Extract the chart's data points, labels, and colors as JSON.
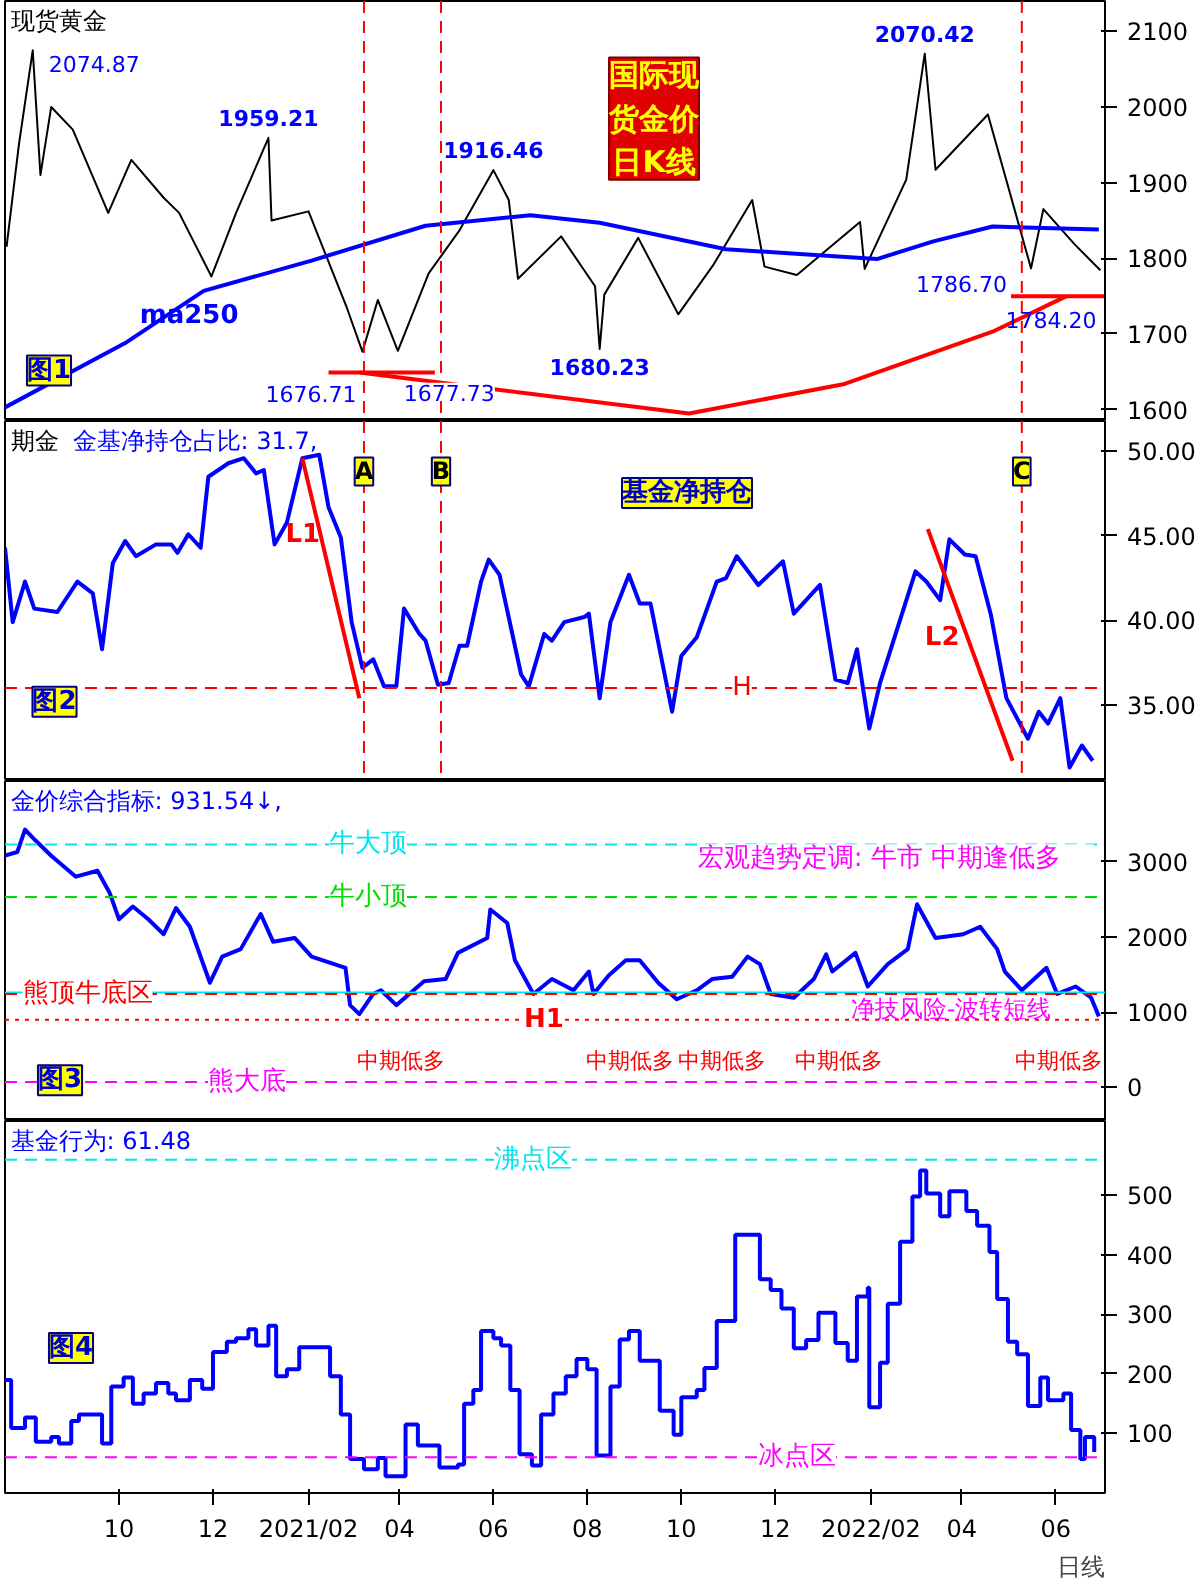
{
  "chart_data": [
    {
      "type": "line",
      "title": "现货黄金",
      "xlim": [
        "2020-07-19",
        "2022-07-03"
      ],
      "ylim": [
        1585,
        2140
      ],
      "yticks": [
        1600,
        1700,
        1800,
        1900,
        2000,
        2100
      ],
      "tick_labels": "y",
      "series": [
        {
          "color": "#000000",
          "x": [
            "2020-07-20",
            "2020-07-28",
            "2020-08-06",
            "2020-08-11",
            "2020-08-18",
            "2020-09-01",
            "2020-09-24",
            "2020-10-09",
            "2020-10-30",
            "2020-11-09",
            "2020-11-30",
            "2020-12-16",
            "2021-01-06",
            "2021-01-08",
            "2021-02-01",
            "2021-02-26",
            "2021-03-08",
            "2021-03-18",
            "2021-03-31",
            "2021-04-20",
            "2021-05-10",
            "2021-06-01",
            "2021-06-11",
            "2021-06-17",
            "2021-07-15",
            "2021-08-06",
            "2021-08-09",
            "2021-08-12",
            "2021-09-03",
            "2021-09-29",
            "2021-10-22",
            "2021-11-16",
            "2021-11-24",
            "2021-12-15",
            "2022-01-25",
            "2022-01-28",
            "2022-02-24",
            "2022-03-08",
            "2022-03-15",
            "2022-04-18",
            "2022-05-16",
            "2022-05-24",
            "2022-06-13",
            "2022-06-30"
          ],
          "values": [
            1815,
            1950,
            2074.87,
            1910,
            2000,
            1970,
            1860,
            1930,
            1880,
            1860,
            1776,
            1860,
            1959.21,
            1850,
            1862,
            1734,
            1676.71,
            1745,
            1677.73,
            1780,
            1837,
            1916.46,
            1877,
            1773,
            1829,
            1763,
            1680.23,
            1752,
            1827,
            1726,
            1792,
            1877,
            1789,
            1778,
            1848,
            1786,
            1904,
            2070.42,
            1917,
            1990,
            1786.7,
            1865,
            1819,
            1784.2
          ]
        },
        {
          "name": "ma250",
          "color": "#0000ff",
          "x": [
            "2020-07-19",
            "2020-10-05",
            "2020-11-25",
            "2021-02-03",
            "2021-04-18",
            "2021-06-25",
            "2021-08-09",
            "2021-10-30",
            "2022-02-05",
            "2022-03-13",
            "2022-04-21",
            "2022-06-29"
          ],
          "values": [
            1603,
            1688,
            1757,
            1797,
            1843,
            1857,
            1847,
            1812,
            1799,
            1822,
            1842,
            1838
          ]
        },
        {
          "color": "#ff0000",
          "x": [
            "2021-03-06",
            "2021-10-06",
            "2022-01-15",
            "2022-04-21",
            "2022-06-08"
          ],
          "values": [
            1649,
            1595,
            1634,
            1703,
            1750
          ]
        },
        {
          "color": "#ff0000",
          "x": [
            "2021-02-14",
            "2021-04-24"
          ],
          "values": [
            1649,
            1649
          ]
        },
        {
          "color": "#ff0000",
          "x": [
            "2022-05-03",
            "2022-07-03"
          ],
          "values": [
            1750,
            1750
          ]
        }
      ],
      "ref_lines": [
        {
          "axis": "x",
          "value": "2021-03-09",
          "color": "#ff0000",
          "line_style": "dashed"
        },
        {
          "axis": "x",
          "value": "2021-04-28",
          "color": "#ff0000",
          "line_style": "dashed"
        },
        {
          "axis": "x",
          "value": "2022-05-10",
          "color": "#ff0000",
          "line_style": "dashed"
        }
      ],
      "annotations": [
        {
          "text": "2074.87",
          "x": "2020-08-06",
          "y": 2074.87
        },
        {
          "text": "1959.21",
          "x": "2021-01-06",
          "y": 1959.21
        },
        {
          "text": "1916.46",
          "x": "2021-06-01",
          "y": 1916.46
        },
        {
          "text": "1676.71",
          "x": "2021-03-08",
          "y": 1676.71
        },
        {
          "text": "1677.73",
          "x": "2021-03-31",
          "y": 1677.73
        },
        {
          "text": "1680.23",
          "x": "2021-08-09",
          "y": 1680.23
        },
        {
          "text": "2070.42",
          "x": "2022-03-08",
          "y": 2070.42
        },
        {
          "text": "1786.70",
          "x": "2022-05-16",
          "y": 1786.7
        },
        {
          "text": "1784.20",
          "x": "2022-06-30",
          "y": 1784.2
        },
        "国际现货金价日K线",
        "图1"
      ]
    },
    {
      "type": "line",
      "title": "期金",
      "subtitle": "金基净持仓占比: 31.7,",
      "xlim": [
        "2020-07-19",
        "2022-07-03"
      ],
      "ylim": [
        30.5,
        51.8
      ],
      "yticks": [
        {
          "value": 35,
          "label": "35.00"
        },
        {
          "value": 40,
          "label": "40.00"
        },
        {
          "value": 45,
          "label": "45.00"
        },
        {
          "value": 50,
          "label": "50.00"
        }
      ],
      "tick_labels": "y",
      "series": [
        {
          "color": "#0000ff",
          "x": [
            "2020-07-19",
            "2020-07-24",
            "2020-08-01",
            "2020-08-07",
            "2020-08-22",
            "2020-09-04",
            "2020-09-14",
            "2020-09-20",
            "2020-09-27",
            "2020-10-05",
            "2020-10-12",
            "2020-10-25",
            "2020-11-04",
            "2020-11-08",
            "2020-11-15",
            "2020-11-23",
            "2020-11-28",
            "2020-12-11",
            "2020-12-21",
            "2020-12-29",
            "2021-01-03",
            "2021-01-10",
            "2021-01-18",
            "2021-01-28",
            "2021-02-08",
            "2021-02-14",
            "2021-02-22",
            "2021-03-01",
            "2021-03-08",
            "2021-03-15",
            "2021-03-22",
            "2021-03-30",
            "2021-04-04",
            "2021-04-14",
            "2021-04-18",
            "2021-04-26",
            "2021-05-03",
            "2021-05-10",
            "2021-05-15",
            "2021-05-24",
            "2021-05-29",
            "2021-06-05",
            "2021-06-19",
            "2021-06-24",
            "2021-07-04",
            "2021-07-09",
            "2021-07-17",
            "2021-07-30",
            "2021-08-02",
            "2021-08-09",
            "2021-08-16",
            "2021-08-28",
            "2021-09-04",
            "2021-09-11",
            "2021-09-25",
            "2021-10-01",
            "2021-10-11",
            "2021-10-24",
            "2021-10-30",
            "2021-11-06",
            "2021-11-20",
            "2021-12-06",
            "2021-12-13",
            "2021-12-30",
            "2022-01-09",
            "2022-01-17",
            "2022-01-23",
            "2022-01-31",
            "2022-02-07",
            "2022-03-02",
            "2022-03-09",
            "2022-03-18",
            "2022-03-24",
            "2022-04-03",
            "2022-04-10",
            "2022-04-20",
            "2022-04-30",
            "2022-05-14",
            "2022-05-21",
            "2022-05-27",
            "2022-06-04",
            "2022-06-10",
            "2022-06-18",
            "2022-06-25"
          ],
          "values": [
            44.3,
            39.9,
            42.3,
            40.7,
            40.5,
            42.3,
            41.6,
            38.3,
            43.4,
            44.7,
            43.8,
            44.5,
            44.5,
            44.0,
            45.1,
            44.3,
            48.5,
            49.3,
            49.6,
            48.7,
            48.9,
            44.5,
            45.8,
            49.6,
            49.8,
            46.7,
            44.9,
            39.9,
            37.2,
            37.7,
            36.1,
            36.1,
            40.7,
            39.2,
            38.8,
            36.2,
            36.3,
            38.5,
            38.5,
            42.3,
            43.6,
            42.7,
            36.8,
            36.1,
            39.2,
            38.8,
            39.9,
            40.2,
            40.4,
            35.4,
            39.9,
            42.7,
            41.0,
            41.0,
            34.6,
            37.9,
            39.0,
            42.3,
            42.5,
            43.8,
            42.1,
            43.5,
            40.4,
            42.1,
            36.5,
            36.3,
            38.3,
            33.6,
            36.3,
            42.9,
            42.3,
            41.2,
            44.8,
            43.9,
            43.8,
            40.3,
            35.4,
            33.0,
            34.6,
            33.9,
            35.4,
            31.3,
            32.6,
            31.7
          ]
        },
        {
          "name": "L1",
          "color": "#ff0000",
          "x": [
            "2021-01-28",
            "2021-03-06"
          ],
          "values": [
            49.6,
            35.4
          ]
        },
        {
          "name": "L2",
          "color": "#ff0000",
          "x": [
            "2022-03-10",
            "2022-05-04"
          ],
          "values": [
            45.4,
            31.7
          ]
        }
      ],
      "ref_lines": [
        {
          "axis": "y",
          "value": 36,
          "label": "H",
          "color": "#ff0000",
          "line_style": "dashed"
        },
        {
          "axis": "x",
          "value": "2021-03-09",
          "label": "A",
          "color": "#ff0000",
          "line_style": "dashed"
        },
        {
          "axis": "x",
          "value": "2021-04-28",
          "label": "B",
          "color": "#ff0000",
          "line_style": "dashed"
        },
        {
          "axis": "x",
          "value": "2022-05-10",
          "label": "C",
          "color": "#ff0000",
          "line_style": "dashed"
        }
      ],
      "annotations": [
        "基金净持仓",
        "图2"
      ]
    },
    {
      "type": "line",
      "title": "金价综合指标: 931.54↓,",
      "xlim": [
        "2020-07-19",
        "2022-07-03"
      ],
      "ylim": [
        -447,
        4073
      ],
      "yticks": [
        0,
        1000,
        2000,
        3000
      ],
      "tick_labels": "y",
      "series": [
        {
          "color": "#0000ff",
          "x": [
            "2020-07-19",
            "2020-07-27",
            "2020-08-01",
            "2020-08-08",
            "2020-08-18",
            "2020-09-03",
            "2020-09-17",
            "2020-09-25",
            "2020-10-01",
            "2020-10-10",
            "2020-10-20",
            "2020-10-30",
            "2020-11-07",
            "2020-11-16",
            "2020-11-29",
            "2020-12-07",
            "2020-12-19",
            "2021-01-01",
            "2021-01-09",
            "2021-01-23",
            "2021-02-03",
            "2021-02-25",
            "2021-02-28",
            "2021-03-06",
            "2021-03-15",
            "2021-03-20",
            "2021-03-30",
            "2021-04-17",
            "2021-05-01",
            "2021-05-09",
            "2021-05-28",
            "2021-05-30",
            "2021-06-10",
            "2021-06-15",
            "2021-06-27",
            "2021-07-09",
            "2021-07-23",
            "2021-08-02",
            "2021-08-05",
            "2021-08-15",
            "2021-08-26",
            "2021-09-04",
            "2021-09-16",
            "2021-09-28",
            "2021-10-11",
            "2021-10-21",
            "2021-11-03",
            "2021-11-13",
            "2021-11-21",
            "2021-11-28",
            "2021-12-13",
            "2021-12-26",
            "2022-01-03",
            "2022-01-07",
            "2022-01-22",
            "2022-01-30",
            "2022-02-12",
            "2022-02-25",
            "2022-03-03",
            "2022-03-15",
            "2022-04-02",
            "2022-04-13",
            "2022-04-24",
            "2022-04-29",
            "2022-05-10",
            "2022-05-26",
            "2022-06-02",
            "2022-06-14",
            "2022-06-24",
            "2022-06-29"
          ],
          "values": [
            3080,
            3129,
            3427,
            3278,
            3080,
            2801,
            2880,
            2583,
            2235,
            2404,
            2235,
            2036,
            2384,
            2136,
            1391,
            1738,
            1838,
            2305,
            1937,
            1987,
            1738,
            1589,
            1093,
            973,
            1242,
            1291,
            1093,
            1411,
            1440,
            1788,
            1987,
            2364,
            2185,
            1689,
            1242,
            1440,
            1291,
            1540,
            1242,
            1490,
            1689,
            1689,
            1391,
            1172,
            1291,
            1440,
            1470,
            1738,
            1639,
            1242,
            1192,
            1440,
            1768,
            1540,
            1788,
            1341,
            1639,
            1838,
            2434,
            1987,
            2036,
            2136,
            1838,
            1540,
            1291,
            1589,
            1242,
            1341,
            1192,
            944
          ]
        }
      ],
      "ref_lines": [
        {
          "axis": "y",
          "value": 3230,
          "label": "牛大顶",
          "color": "#00e5ee",
          "line_style": "dashed"
        },
        {
          "axis": "y",
          "value": 2530,
          "label": "牛小顶",
          "color": "#00dd00",
          "line_style": "dashed"
        },
        {
          "axis": "y",
          "value": 1260,
          "color": "#00e5ee",
          "line_style": "solid"
        },
        {
          "axis": "y",
          "value": 1240,
          "label": "熊顶牛底区",
          "color": "#ff0000",
          "line_style": "dashed"
        },
        {
          "axis": "y",
          "value": 900,
          "label": "H1",
          "color": "#ff0000",
          "line_style": "dotted"
        },
        {
          "axis": "y",
          "value": 70,
          "label": "熊大底",
          "color": "#ff00ff",
          "line_style": "dashed"
        }
      ],
      "annotations": [
        "中期低多",
        "中期低多",
        "中期低多",
        "中期低多",
        "中期低多",
        "宏观趋势定调:   牛市   中期逢低多",
        "净技风险-波转短线",
        "图3"
      ]
    },
    {
      "type": "step",
      "title": "基金行为: 61.48",
      "xlim": [
        "2020-07-19",
        "2022-07-03"
      ],
      "ylim": [
        0,
        625
      ],
      "yticks": [
        100,
        200,
        300,
        400,
        500
      ],
      "xticks": [
        {
          "value": "2020-10-01",
          "label": "10"
        },
        {
          "value": "2020-12-01",
          "label": "12"
        },
        {
          "value": "2021-02-01",
          "label": "2021/02"
        },
        {
          "value": "2021-04-01",
          "label": "04"
        },
        {
          "value": "2021-06-01",
          "label": "06"
        },
        {
          "value": "2021-08-01",
          "label": "08"
        },
        {
          "value": "2021-10-01",
          "label": "10"
        },
        {
          "value": "2021-12-01",
          "label": "12"
        },
        {
          "value": "2022-02-01",
          "label": "2022/02"
        },
        {
          "value": "2022-04-01",
          "label": "04"
        },
        {
          "value": "2022-06-01",
          "label": "06"
        }
      ],
      "series": [
        {
          "color": "#0000ff",
          "x": [
            "2020-07-19",
            "2020-07-23",
            "2020-08-01",
            "2020-08-08",
            "2020-08-18",
            "2020-08-23",
            "2020-08-31",
            "2020-09-05",
            "2020-09-20",
            "2020-09-26",
            "2020-10-04",
            "2020-10-10",
            "2020-10-17",
            "2020-10-25",
            "2020-11-02",
            "2020-11-07",
            "2020-11-16",
            "2020-11-24",
            "2020-12-01",
            "2020-12-10",
            "2020-12-16",
            "2020-12-24",
            "2020-12-29",
            "2021-01-06",
            "2021-01-11",
            "2021-01-18",
            "2021-01-26",
            "2021-02-15",
            "2021-02-22",
            "2021-02-28",
            "2021-03-09",
            "2021-03-18",
            "2021-03-23",
            "2021-04-05",
            "2021-04-13",
            "2021-04-27",
            "2021-05-09",
            "2021-05-13",
            "2021-05-19",
            "2021-05-24",
            "2021-06-01",
            "2021-06-06",
            "2021-06-12",
            "2021-06-18",
            "2021-06-26",
            "2021-07-02",
            "2021-07-10",
            "2021-07-18",
            "2021-07-25",
            "2021-08-01",
            "2021-08-07",
            "2021-08-16",
            "2021-08-22",
            "2021-08-28",
            "2021-09-04",
            "2021-09-17",
            "2021-09-26",
            "2021-10-01",
            "2021-10-11",
            "2021-10-16",
            "2021-10-24",
            "2021-11-05",
            "2021-11-21",
            "2021-11-28",
            "2021-12-05",
            "2021-12-13",
            "2021-12-21",
            "2021-12-29",
            "2022-01-09",
            "2022-01-17",
            "2022-01-23",
            "2022-01-30",
            "2022-01-31",
            "2022-02-07",
            "2022-02-12",
            "2022-02-20",
            "2022-02-28",
            "2022-03-05",
            "2022-03-09",
            "2022-03-18",
            "2022-03-24",
            "2022-04-04",
            "2022-04-11",
            "2022-04-19",
            "2022-04-24",
            "2022-05-01",
            "2022-05-07",
            "2022-05-14",
            "2022-05-22",
            "2022-05-27",
            "2022-06-06",
            "2022-06-11",
            "2022-06-17",
            "2022-06-20",
            "2022-06-26"
          ],
          "values": [
            190,
            109,
            127,
            86,
            94,
            83,
            121,
            132,
            83,
            179,
            194,
            150,
            167,
            185,
            167,
            156,
            190,
            175,
            237,
            254,
            260,
            275,
            248,
            281,
            196,
            208,
            245,
            196,
            132,
            57,
            40,
            59,
            28,
            115,
            80,
            43,
            48,
            150,
            173,
            272,
            260,
            248,
            173,
            65,
            46,
            132,
            167,
            196,
            225,
            208,
            63,
            179,
            258,
            272,
            222,
            138,
            98,
            161,
            173,
            210,
            289,
            434,
            359,
            341,
            310,
            243,
            257,
            303,
            252,
            222,
            330,
            345,
            144,
            219,
            318,
            422,
            498,
            542,
            503,
            465,
            507,
            474,
            449,
            405,
            326,
            254,
            233,
            146,
            194,
            156,
            167,
            106,
            57,
            94,
            69
          ]
        }
      ],
      "ref_lines": [
        {
          "axis": "y",
          "value": 560,
          "label": "沸点区",
          "color": "#00e5ee",
          "line_style": "dashed"
        },
        {
          "axis": "y",
          "value": 60,
          "label": "冰点区",
          "color": "#ff00ff",
          "line_style": "dashed"
        }
      ],
      "annotations": [
        "图4",
        "日线"
      ]
    }
  ]
}
